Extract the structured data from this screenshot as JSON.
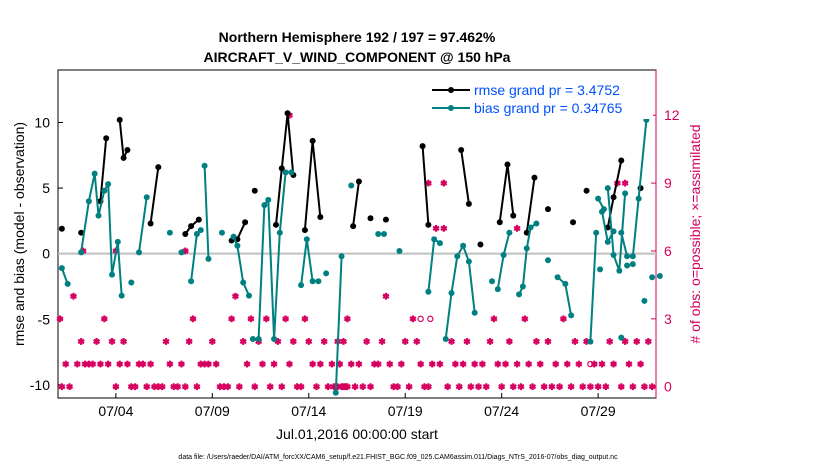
{
  "chart_data": {
    "type": "line",
    "title_line1": "Northern Hemisphere 192 / 197 = 97.462%",
    "title_line2": "AIRCRAFT_V_WIND_COMPONENT @ 150 hPa",
    "ylabel_left": "rmse and bias (model - observation)",
    "ylabel_right": "# of obs: o=possible; ×=assimilated",
    "xlabel": "Jul.01,2016 00:00:00 start",
    "footnote": "data file: /Users/raeder/DAI/ATM_forcXX/CAM6_setup/f.e21.FHIST_BGC.f09_025.CAM6assim.011/Diags_NTrS_2016-07/obs_diag_output.nc",
    "x_range": [
      1,
      32
    ],
    "ylim_left": [
      -11,
      14
    ],
    "ylim_right": [
      -0.5,
      14
    ],
    "x_ticks": [
      {
        "x": 4,
        "label": "07/04"
      },
      {
        "x": 9,
        "label": "07/09"
      },
      {
        "x": 14,
        "label": "07/14"
      },
      {
        "x": 19,
        "label": "07/19"
      },
      {
        "x": 24,
        "label": "07/24"
      },
      {
        "x": 29,
        "label": "07/29"
      }
    ],
    "y_ticks_left": [
      {
        "v": -10,
        "label": "-10"
      },
      {
        "v": -5,
        "label": "-5"
      },
      {
        "v": 0,
        "label": "0"
      },
      {
        "v": 5,
        "label": "5"
      },
      {
        "v": 10,
        "label": "10"
      }
    ],
    "y_ticks_right": [
      {
        "v": 0,
        "label": "0"
      },
      {
        "v": 3,
        "label": "3"
      },
      {
        "v": 6,
        "label": "6"
      },
      {
        "v": 9,
        "label": "9"
      },
      {
        "v": 12,
        "label": "12"
      }
    ],
    "colors": {
      "rmse": "#000000",
      "bias": "#008080",
      "counts": "#d6005f",
      "zero_line": "#bfbfbf",
      "title": "#000000",
      "legend_text": "#0051ff"
    },
    "legend_position": "top-right",
    "series": [
      {
        "name": "rmse grand pr = 3.4752",
        "color": "#000000",
        "segments": [
          [
            [
              1.2,
              1.9
            ]
          ],
          [
            [
              2.2,
              1.6
            ]
          ],
          [
            [
              3.2,
              4.0
            ],
            [
              3.5,
              8.8
            ]
          ],
          [
            [
              4.2,
              10.2
            ],
            [
              4.4,
              7.3
            ],
            [
              4.6,
              7.9
            ]
          ],
          [
            [
              5.8,
              2.3
            ],
            [
              6.2,
              6.6
            ]
          ],
          [
            [
              7.6,
              1.5
            ],
            [
              7.9,
              2.1
            ],
            [
              8.3,
              2.6
            ]
          ],
          [
            [
              10.0,
              1.0
            ],
            [
              10.3,
              1.1
            ],
            [
              10.7,
              2.4
            ]
          ],
          [
            [
              11.2,
              4.8
            ]
          ],
          [
            [
              12.3,
              2.2
            ],
            [
              12.6,
              6.5
            ],
            [
              12.9,
              10.7
            ],
            [
              13.2,
              6.0
            ]
          ],
          [
            [
              13.8,
              1.8
            ],
            [
              14.2,
              8.6
            ],
            [
              14.6,
              2.8
            ]
          ],
          [
            [
              16.3,
              2.1
            ],
            [
              16.6,
              5.5
            ]
          ],
          [
            [
              17.2,
              2.7
            ]
          ],
          [
            [
              18.0,
              2.6
            ]
          ],
          [
            [
              19.9,
              8.2
            ],
            [
              20.2,
              2.2
            ]
          ],
          [
            [
              21.9,
              7.9
            ],
            [
              22.3,
              3.8
            ]
          ],
          [
            [
              22.9,
              0.7
            ]
          ],
          [
            [
              23.9,
              2.4
            ],
            [
              24.3,
              6.8
            ],
            [
              24.6,
              2.9
            ]
          ],
          [
            [
              25.3,
              1.6
            ],
            [
              25.7,
              5.8
            ]
          ],
          [
            [
              26.4,
              3.4
            ]
          ],
          [
            [
              27.7,
              2.4
            ]
          ],
          [
            [
              28.4,
              4.8
            ]
          ],
          [
            [
              29.5,
              2.0
            ],
            [
              29.8,
              4.3
            ],
            [
              30.2,
              7.1
            ]
          ],
          [
            [
              31.2,
              5.0
            ]
          ]
        ]
      },
      {
        "name": "bias grand pr = 0.34765",
        "color": "#008080",
        "segments": [
          [
            [
              1.2,
              -1.1
            ],
            [
              1.5,
              -2.3
            ]
          ],
          [
            [
              2.2,
              0.1
            ],
            [
              2.6,
              4.0
            ],
            [
              2.9,
              6.1
            ],
            [
              3.1,
              2.9
            ],
            [
              3.4,
              4.8
            ],
            [
              3.6,
              5.3
            ],
            [
              3.8,
              -1.6
            ],
            [
              4.1,
              0.9
            ],
            [
              4.3,
              -3.2
            ]
          ],
          [
            [
              4.8,
              -2.2
            ]
          ],
          [
            [
              5.2,
              0.1
            ],
            [
              5.6,
              4.3
            ]
          ],
          [
            [
              6.8,
              1.6
            ]
          ],
          [
            [
              7.4,
              0.1
            ]
          ],
          [
            [
              7.9,
              -2.1
            ],
            [
              8.2,
              1.5
            ],
            [
              8.4,
              1.8
            ]
          ],
          [
            [
              8.6,
              6.7
            ],
            [
              8.8,
              -0.4
            ]
          ],
          [
            [
              9.5,
              1.6
            ]
          ],
          [
            [
              10.1,
              1.3
            ],
            [
              10.3,
              0.6
            ],
            [
              10.6,
              -2.2
            ],
            [
              10.9,
              -3.2
            ]
          ],
          [
            [
              11.1,
              -6.5
            ],
            [
              11.4,
              -6.5
            ],
            [
              11.7,
              3.7
            ],
            [
              11.9,
              4.1
            ],
            [
              12.2,
              -6.5
            ],
            [
              12.5,
              1.6
            ],
            [
              12.8,
              6.2
            ],
            [
              13.1,
              6.2
            ]
          ],
          [
            [
              13.6,
              -2.4
            ],
            [
              13.9,
              1.1
            ],
            [
              14.2,
              -2.1
            ],
            [
              14.5,
              -2.1
            ]
          ],
          [
            [
              14.9,
              -1.5
            ]
          ],
          [
            [
              15.4,
              -10.6
            ],
            [
              15.7,
              -0.2
            ]
          ],
          [
            [
              16.2,
              5.2
            ]
          ],
          [
            [
              17.6,
              1.5
            ],
            [
              17.9,
              1.5
            ]
          ],
          [
            [
              18.7,
              0.2
            ]
          ],
          [
            [
              20.2,
              -2.9
            ],
            [
              20.5,
              1.1
            ],
            [
              20.8,
              0.8
            ]
          ],
          [
            [
              21.1,
              -6.5
            ],
            [
              21.4,
              -3.0
            ],
            [
              21.7,
              -0.2
            ],
            [
              22.0,
              0.6
            ],
            [
              22.3,
              -0.6
            ],
            [
              22.6,
              -4.5
            ]
          ],
          [
            [
              23.5,
              -2.1
            ]
          ],
          [
            [
              23.8,
              -2.7
            ],
            [
              24.1,
              -0.1
            ],
            [
              24.4,
              1.6
            ]
          ],
          [
            [
              24.9,
              -3.1
            ],
            [
              25.1,
              -2.5
            ],
            [
              25.3,
              0.4
            ],
            [
              25.5,
              2.0
            ],
            [
              25.8,
              2.3
            ]
          ],
          [
            [
              26.4,
              -0.5
            ]
          ],
          [
            [
              26.9,
              -1.8
            ],
            [
              27.3,
              -2.3
            ],
            [
              27.6,
              -4.7
            ]
          ],
          [
            [
              28.6,
              -6.7
            ],
            [
              28.9,
              1.6
            ]
          ],
          [
            [
              29.2,
              3.2
            ],
            [
              29.5,
              0.9
            ],
            [
              29.8,
              1.7
            ]
          ],
          [
            [
              30.2,
              -6.4
            ]
          ],
          [
            [
              30.5,
              -0.9
            ],
            [
              30.8,
              -0.8
            ]
          ],
          [
            [
              31.4,
              -3.6
            ]
          ],
          [
            [
              31.8,
              -1.8
            ]
          ],
          [
            [
              32.2,
              -1.7
            ]
          ],
          [
            [
              29.0,
              4.2
            ],
            [
              29.3,
              3.4
            ]
          ],
          [
            [
              29.1,
              -1.2
            ]
          ],
          [
            [
              29.5,
              5.0
            ],
            [
              29.8,
              -0.1
            ],
            [
              30.1,
              -1.3
            ],
            [
              30.4,
              4.6
            ]
          ],
          [
            [
              30.2,
              1.6
            ],
            [
              30.5,
              -0.2
            ],
            [
              30.8,
              -0.2
            ],
            [
              31.1,
              4.2
            ],
            [
              31.5,
              10.2
            ]
          ]
        ]
      }
    ],
    "counts_assimilated": [
      [
        1.1,
        3
      ],
      [
        1.2,
        0
      ],
      [
        1.4,
        1
      ],
      [
        1.6,
        0
      ],
      [
        1.8,
        4
      ],
      [
        2.0,
        1
      ],
      [
        2.2,
        2
      ],
      [
        2.4,
        1
      ],
      [
        2.6,
        1
      ],
      [
        2.8,
        1
      ],
      [
        3.0,
        2
      ],
      [
        3.2,
        1
      ],
      [
        3.4,
        3
      ],
      [
        3.6,
        1
      ],
      [
        3.8,
        2
      ],
      [
        4.0,
        0
      ],
      [
        4.2,
        1
      ],
      [
        4.4,
        2
      ],
      [
        4.6,
        1
      ],
      [
        4.8,
        0
      ],
      [
        5.0,
        0
      ],
      [
        5.2,
        1
      ],
      [
        5.4,
        1
      ],
      [
        5.6,
        0
      ],
      [
        5.8,
        1
      ],
      [
        6.0,
        0
      ],
      [
        6.2,
        0
      ],
      [
        6.4,
        0
      ],
      [
        6.6,
        2
      ],
      [
        6.8,
        1
      ],
      [
        7.0,
        0
      ],
      [
        7.2,
        0
      ],
      [
        7.4,
        1
      ],
      [
        7.6,
        0
      ],
      [
        7.8,
        2
      ],
      [
        8.0,
        3
      ],
      [
        8.2,
        0
      ],
      [
        8.4,
        1
      ],
      [
        8.6,
        1
      ],
      [
        8.8,
        1
      ],
      [
        9.0,
        2
      ],
      [
        9.2,
        1
      ],
      [
        9.4,
        0
      ],
      [
        9.6,
        0
      ],
      [
        9.8,
        0
      ],
      [
        10.0,
        3
      ],
      [
        10.2,
        4
      ],
      [
        10.4,
        0
      ],
      [
        10.6,
        2
      ],
      [
        10.8,
        1
      ],
      [
        11.0,
        3
      ],
      [
        11.2,
        0
      ],
      [
        11.4,
        2
      ],
      [
        11.6,
        1
      ],
      [
        11.8,
        3
      ],
      [
        12.0,
        0
      ],
      [
        12.2,
        1
      ],
      [
        12.4,
        2
      ],
      [
        12.6,
        0
      ],
      [
        12.8,
        3
      ],
      [
        13.0,
        1
      ],
      [
        13.2,
        2
      ],
      [
        13.4,
        0
      ],
      [
        13.6,
        0
      ],
      [
        13.8,
        3
      ],
      [
        14.0,
        2
      ],
      [
        14.2,
        1
      ],
      [
        14.4,
        0
      ],
      [
        14.6,
        1
      ],
      [
        14.8,
        2
      ],
      [
        15.0,
        0
      ],
      [
        15.2,
        1
      ],
      [
        15.4,
        0
      ],
      [
        15.6,
        1
      ],
      [
        15.8,
        2
      ],
      [
        16.0,
        3
      ],
      [
        16.2,
        1
      ],
      [
        16.4,
        0
      ],
      [
        16.6,
        1
      ],
      [
        16.8,
        0
      ],
      [
        17.0,
        2
      ],
      [
        17.2,
        0
      ],
      [
        17.4,
        1
      ],
      [
        17.6,
        1
      ],
      [
        17.8,
        2
      ],
      [
        18.0,
        4
      ],
      [
        18.2,
        1
      ],
      [
        18.4,
        0
      ],
      [
        18.6,
        0
      ],
      [
        18.8,
        1
      ],
      [
        19.0,
        2
      ],
      [
        19.2,
        0
      ],
      [
        19.4,
        3
      ],
      [
        19.6,
        2
      ],
      [
        19.8,
        1
      ],
      [
        20.0,
        0
      ],
      [
        20.2,
        0
      ],
      [
        20.4,
        1
      ],
      [
        20.6,
        7
      ],
      [
        20.8,
        1
      ],
      [
        21.0,
        7
      ],
      [
        21.2,
        0
      ],
      [
        21.4,
        2
      ],
      [
        21.6,
        1
      ],
      [
        21.8,
        0
      ],
      [
        22.0,
        1
      ],
      [
        22.2,
        2
      ],
      [
        22.4,
        0
      ],
      [
        22.6,
        1
      ],
      [
        22.8,
        0
      ],
      [
        23.0,
        1
      ],
      [
        23.2,
        0
      ],
      [
        23.4,
        2
      ],
      [
        23.6,
        3
      ],
      [
        23.8,
        1
      ],
      [
        24.0,
        0
      ],
      [
        24.2,
        1
      ],
      [
        24.4,
        2
      ],
      [
        24.6,
        0
      ],
      [
        24.8,
        1
      ],
      [
        25.0,
        0
      ],
      [
        25.2,
        3
      ],
      [
        25.4,
        1
      ],
      [
        25.6,
        0
      ],
      [
        25.8,
        2
      ],
      [
        26.0,
        1
      ],
      [
        26.2,
        0
      ],
      [
        26.4,
        2
      ],
      [
        26.6,
        0
      ],
      [
        26.8,
        1
      ],
      [
        27.0,
        0
      ],
      [
        27.2,
        3
      ],
      [
        27.4,
        1
      ],
      [
        27.6,
        0
      ],
      [
        27.8,
        2
      ],
      [
        28.0,
        1
      ],
      [
        28.2,
        0
      ],
      [
        28.4,
        2
      ],
      [
        28.6,
        0
      ],
      [
        28.8,
        1
      ],
      [
        29.0,
        0
      ],
      [
        29.2,
        1
      ],
      [
        29.4,
        0
      ],
      [
        29.6,
        2
      ],
      [
        29.8,
        1
      ],
      [
        30.0,
        9
      ],
      [
        30.2,
        0
      ],
      [
        30.4,
        2
      ],
      [
        30.6,
        1
      ],
      [
        30.8,
        0
      ],
      [
        31.0,
        2
      ],
      [
        31.2,
        1
      ],
      [
        31.4,
        0
      ],
      [
        31.6,
        2
      ],
      [
        31.8,
        0
      ],
      [
        15.3,
        0
      ],
      [
        15.5,
        0
      ],
      [
        15.7,
        0
      ],
      [
        15.9,
        0
      ],
      [
        15.5,
        2
      ],
      [
        15.6,
        1
      ],
      [
        15.8,
        0
      ],
      [
        16.0,
        0
      ]
    ],
    "counts_assimilated_extra": [
      [
        13.0,
        12
      ],
      [
        2.3,
        6
      ],
      [
        4.0,
        6
      ],
      [
        7.6,
        6
      ],
      [
        20.2,
        9
      ],
      [
        21.0,
        9
      ],
      [
        24.8,
        7
      ],
      [
        30.4,
        9
      ]
    ],
    "counts_possible": [
      [
        19.8,
        3
      ],
      [
        28.6,
        1
      ],
      [
        20.3,
        3
      ]
    ]
  }
}
